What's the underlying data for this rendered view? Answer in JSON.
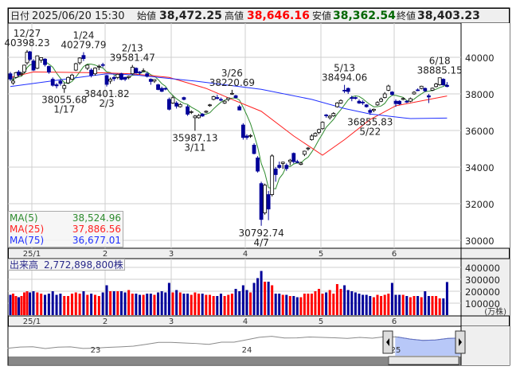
{
  "header": {
    "date_label": "日付",
    "datetime": "2025/06/20 15:30",
    "open_label": "始値",
    "open": "38,472.25",
    "high_label": "高値",
    "high": "38,646.16",
    "low_label": "安値",
    "low": "38,362.54",
    "close_label": "終値",
    "close": "38,403.23"
  },
  "legend": {
    "ma5_label": "MA(5)",
    "ma5_value": "38,524.96",
    "ma25_label": "MA(25)",
    "ma25_value": "37,886.56",
    "ma75_label": "MA(75)",
    "ma75_value": "36,677.01"
  },
  "volume_legend": {
    "label": "出来高",
    "value": "2,772,898,800株"
  },
  "colors": {
    "up": "#ffffff",
    "down": "#000099",
    "volume_up": "#ff0000",
    "volume_down": "#000099",
    "ma5": "#2e8b2e",
    "ma25": "#ff2020",
    "ma75": "#2030ff",
    "header_high": "#ff0000",
    "header_low": "#006600",
    "nav_selection": "#b8c8f8"
  },
  "chart_data": {
    "type": "candlestick",
    "y_ticks": [
      "30000",
      "32000",
      "34000",
      "36000",
      "38000",
      "40000"
    ],
    "ylim": [
      29565,
      41870
    ],
    "x_month_labels": [
      "25/1",
      "2",
      "3",
      "4",
      "5",
      "6"
    ],
    "volume_ticks": [
      "100000",
      "200000",
      "300000",
      "400000"
    ],
    "volume_unit": "(万株)",
    "grid": true,
    "candles": [
      [
        "12/19",
        39100,
        39200,
        38700,
        38810,
        170000
      ],
      [
        "12/20",
        38600,
        38900,
        38500,
        38700,
        180000
      ],
      [
        "12/23",
        38900,
        39200,
        38850,
        39160,
        160000
      ],
      [
        "12/24",
        39200,
        39300,
        38950,
        39040,
        150000
      ],
      [
        "12/25",
        39100,
        39200,
        38980,
        39130,
        160000
      ],
      [
        "12/26",
        39200,
        39600,
        39150,
        39570,
        190000
      ],
      [
        "12/27",
        39700,
        40398.23,
        39600,
        40280,
        200000
      ],
      [
        "12/30",
        40300,
        40350,
        39800,
        39890,
        190000
      ],
      [
        "1/6",
        39800,
        39900,
        39250,
        39300,
        200000
      ],
      [
        "1/7",
        39400,
        40100,
        39350,
        40080,
        190000
      ],
      [
        "1/8",
        39850,
        40000,
        39700,
        39980,
        180000
      ],
      [
        "1/9",
        39900,
        39950,
        39500,
        39600,
        170000
      ],
      [
        "1/10",
        39500,
        39550,
        39100,
        39190,
        180000
      ],
      [
        "1/14",
        38800,
        38900,
        38400,
        38470,
        200000
      ],
      [
        "1/15",
        38500,
        38600,
        38300,
        38440,
        170000
      ],
      [
        "1/16",
        38700,
        38800,
        38450,
        38570,
        180000
      ],
      [
        "1/17",
        38300,
        38600,
        38055.68,
        38450,
        160000
      ],
      [
        "1/20",
        38600,
        38950,
        38550,
        38900,
        160000
      ],
      [
        "1/21",
        38800,
        39100,
        38750,
        39030,
        180000
      ],
      [
        "1/22",
        39300,
        39700,
        39250,
        39650,
        190000
      ],
      [
        "1/23",
        39700,
        40000,
        39600,
        39960,
        180000
      ],
      [
        "1/24",
        40100,
        40279.79,
        39800,
        39930,
        200000
      ],
      [
        "1/27",
        39400,
        39600,
        39300,
        39570,
        170000
      ],
      [
        "1/28",
        39300,
        39400,
        38900,
        39020,
        180000
      ],
      [
        "1/29",
        39100,
        39450,
        39000,
        39410,
        170000
      ],
      [
        "1/30",
        39500,
        39600,
        39300,
        39510,
        160000
      ],
      [
        "1/31",
        39600,
        39700,
        39450,
        39570,
        190000
      ],
      [
        "2/3",
        39000,
        39050,
        38401.82,
        38520,
        250000
      ],
      [
        "2/4",
        38700,
        38900,
        38550,
        38800,
        200000
      ],
      [
        "2/5",
        38900,
        39000,
        38700,
        38830,
        200000
      ],
      [
        "2/6",
        38900,
        39100,
        38800,
        39070,
        200000
      ],
      [
        "2/7",
        39100,
        39150,
        38750,
        38790,
        200000
      ],
      [
        "2/10",
        38900,
        38950,
        38700,
        38800,
        190000
      ],
      [
        "2/12",
        38900,
        39000,
        38800,
        38960,
        210000
      ],
      [
        "2/13",
        39100,
        39581.47,
        39050,
        39460,
        180000
      ],
      [
        "2/14",
        39400,
        39450,
        39100,
        39150,
        180000
      ],
      [
        "2/17",
        39200,
        39250,
        39050,
        39170,
        170000
      ],
      [
        "2/18",
        39250,
        39400,
        39200,
        39270,
        170000
      ],
      [
        "2/19",
        39100,
        39200,
        38900,
        38960,
        180000
      ],
      [
        "2/20",
        38800,
        38850,
        38500,
        38680,
        180000
      ],
      [
        "2/21",
        38700,
        38800,
        38600,
        38780,
        170000
      ],
      [
        "2/25",
        38500,
        38550,
        38200,
        38240,
        190000
      ],
      [
        "2/26",
        38300,
        38400,
        38100,
        38140,
        200000
      ],
      [
        "2/27",
        38300,
        38350,
        38200,
        38260,
        190000
      ],
      [
        "2/28",
        37700,
        37800,
        37100,
        37160,
        270000
      ],
      [
        "3/3",
        37500,
        37900,
        37450,
        37790,
        190000
      ],
      [
        "3/4",
        37500,
        37600,
        37200,
        37330,
        210000
      ],
      [
        "3/5",
        37300,
        37500,
        37250,
        37420,
        190000
      ],
      [
        "3/6",
        37800,
        37850,
        37650,
        37700,
        180000
      ],
      [
        "3/7",
        37300,
        37400,
        36800,
        36890,
        180000
      ],
      [
        "3/10",
        37000,
        37100,
        36900,
        37030,
        170000
      ],
      [
        "3/11",
        36700,
        36850,
        35987.13,
        36790,
        190000
      ],
      [
        "3/12",
        36700,
        36900,
        36650,
        36820,
        180000
      ],
      [
        "3/13",
        36900,
        36950,
        36750,
        36790,
        180000
      ],
      [
        "3/14",
        37000,
        37100,
        36950,
        37050,
        170000
      ],
      [
        "3/17",
        37380,
        37450,
        37300,
        37400,
        170000
      ],
      [
        "3/18",
        37700,
        37900,
        37650,
        37850,
        160000
      ],
      [
        "3/19",
        37800,
        37950,
        37700,
        37750,
        160000
      ],
      [
        "3/21",
        37700,
        37800,
        37600,
        37680,
        180000
      ],
      [
        "3/24",
        37500,
        37650,
        37450,
        37600,
        160000
      ],
      [
        "3/25",
        37700,
        37800,
        37600,
        37780,
        170000
      ],
      [
        "3/26",
        38000,
        38220.69,
        37950,
        38030,
        180000
      ],
      [
        "3/27",
        37900,
        37950,
        37750,
        37800,
        220000
      ],
      [
        "3/28",
        37300,
        37400,
        37100,
        37120,
        200000
      ],
      [
        "3/31",
        36300,
        36400,
        35500,
        35620,
        250000
      ],
      [
        "4/1",
        35700,
        35800,
        35500,
        35620,
        210000
      ],
      [
        "4/2",
        35700,
        35800,
        35600,
        35730,
        190000
      ],
      [
        "4/3",
        35200,
        35300,
        34700,
        34740,
        270000
      ],
      [
        "4/4",
        34500,
        34600,
        33700,
        33780,
        310000
      ],
      [
        "4/7",
        33100,
        33200,
        30792.74,
        31140,
        370000
      ],
      [
        "4/8",
        31500,
        33100,
        31400,
        33010,
        280000
      ],
      [
        "4/9",
        32500,
        32700,
        31100,
        31710,
        280000
      ],
      [
        "4/10",
        32500,
        34700,
        32400,
        34610,
        250000
      ],
      [
        "4/11",
        33900,
        34000,
        33200,
        33590,
        180000
      ],
      [
        "4/14",
        34100,
        34300,
        33900,
        33980,
        180000
      ],
      [
        "4/15",
        34200,
        34300,
        33900,
        34270,
        170000
      ],
      [
        "4/16",
        34100,
        34200,
        33800,
        33920,
        170000
      ],
      [
        "4/17",
        34300,
        34450,
        34100,
        34380,
        160000
      ],
      [
        "4/18",
        34750,
        34800,
        34200,
        34300,
        160000
      ],
      [
        "4/21",
        34300,
        34400,
        34200,
        34280,
        150000
      ],
      [
        "4/22",
        34150,
        34300,
        34100,
        34220,
        150000
      ],
      [
        "4/23",
        34700,
        34900,
        34600,
        34870,
        180000
      ],
      [
        "4/24",
        35000,
        35100,
        34900,
        35040,
        180000
      ],
      [
        "4/25",
        35500,
        35800,
        35450,
        35700,
        180000
      ],
      [
        "4/28",
        35700,
        35900,
        35650,
        35840,
        200000
      ],
      [
        "4/30",
        35900,
        36100,
        35800,
        36050,
        220000
      ],
      [
        "5/1",
        36100,
        36500,
        36050,
        36450,
        180000
      ],
      [
        "5/2",
        36850,
        36900,
        36700,
        36830,
        190000
      ],
      [
        "5/7",
        36700,
        36850,
        36600,
        36780,
        210000
      ],
      [
        "5/8",
        36800,
        37000,
        36750,
        36930,
        180000
      ],
      [
        "5/9",
        37300,
        37550,
        37250,
        37500,
        260000
      ],
      [
        "5/12",
        37500,
        37700,
        37450,
        37640,
        220000
      ],
      [
        "5/13",
        38200,
        38494.06,
        38050,
        38180,
        250000
      ],
      [
        "5/14",
        38300,
        38350,
        38000,
        38130,
        210000
      ],
      [
        "5/15",
        37800,
        37900,
        37600,
        37750,
        200000
      ],
      [
        "5/16",
        37800,
        37850,
        37700,
        37750,
        190000
      ],
      [
        "5/19",
        37600,
        37700,
        37450,
        37500,
        180000
      ],
      [
        "5/20",
        37550,
        37650,
        37400,
        37530,
        170000
      ],
      [
        "5/21",
        37400,
        37450,
        37250,
        37300,
        170000
      ],
      [
        "5/22",
        37100,
        37200,
        36855.83,
        36990,
        160000
      ],
      [
        "5/23",
        37100,
        37200,
        37000,
        37160,
        150000
      ],
      [
        "5/26",
        37400,
        37600,
        37350,
        37530,
        170000
      ],
      [
        "5/27",
        37600,
        37800,
        37550,
        37720,
        160000
      ],
      [
        "5/28",
        37800,
        38100,
        37750,
        38000,
        170000
      ],
      [
        "5/29",
        38200,
        38500,
        38150,
        38430,
        180000
      ],
      [
        "5/30",
        38100,
        38150,
        37900,
        37970,
        270000
      ],
      [
        "6/2",
        37600,
        37700,
        37300,
        37470,
        170000
      ],
      [
        "6/3",
        37600,
        37650,
        37400,
        37450,
        170000
      ],
      [
        "6/4",
        37700,
        37800,
        37650,
        37750,
        170000
      ],
      [
        "6/5",
        37600,
        37650,
        37500,
        37550,
        160000
      ],
      [
        "6/6",
        37600,
        37800,
        37550,
        37740,
        150000
      ],
      [
        "6/9",
        38000,
        38150,
        37950,
        38090,
        160000
      ],
      [
        "6/10",
        38220,
        38300,
        38150,
        38210,
        160000
      ],
      [
        "6/11",
        38300,
        38450,
        38250,
        38420,
        150000
      ],
      [
        "6/12",
        38300,
        38350,
        38100,
        38170,
        200000
      ],
      [
        "6/13",
        37900,
        38000,
        37500,
        37830,
        160000
      ],
      [
        "6/16",
        38200,
        38350,
        38150,
        38310,
        160000
      ],
      [
        "6/17",
        38400,
        38600,
        38350,
        38540,
        160000
      ],
      [
        "6/18",
        38500,
        38885.15,
        38450,
        38880,
        140000
      ],
      [
        "6/19",
        38800,
        38850,
        38450,
        38490,
        140000
      ],
      [
        "6/20",
        38472.25,
        38646.16,
        38362.54,
        38403.23,
        277290
      ]
    ],
    "ma25": [
      [
        "12/19",
        38900
      ],
      [
        "1/6",
        39200
      ],
      [
        "1/31",
        39150
      ],
      [
        "2/13",
        39100
      ],
      [
        "2/28",
        38900
      ],
      [
        "3/14",
        38300
      ],
      [
        "3/26",
        37700
      ],
      [
        "4/7",
        37050
      ],
      [
        "4/18",
        35700
      ],
      [
        "5/1",
        34650
      ],
      [
        "5/13",
        35500
      ],
      [
        "5/22",
        36600
      ],
      [
        "6/2",
        37350
      ],
      [
        "6/20",
        37886.56
      ]
    ],
    "ma75": [
      [
        "12/19",
        38400
      ],
      [
        "1/17",
        38800
      ],
      [
        "2/3",
        39100
      ],
      [
        "2/13",
        39050
      ],
      [
        "3/11",
        38700
      ],
      [
        "3/26",
        38450
      ],
      [
        "4/7",
        38250
      ],
      [
        "4/25",
        37700
      ],
      [
        "5/13",
        37200
      ],
      [
        "5/22",
        36900
      ],
      [
        "6/6",
        36650
      ],
      [
        "6/20",
        36677.01
      ]
    ],
    "annotations": [
      {
        "date": "12/27",
        "value": "40398.23",
        "type": "high"
      },
      {
        "date": "1/24",
        "value": "40279.79",
        "type": "high"
      },
      {
        "date": "2/13",
        "value": "39581.47",
        "type": "high"
      },
      {
        "date": "1/17",
        "value": "38055.68",
        "type": "low"
      },
      {
        "date": "2/3",
        "value": "38401.82",
        "type": "low"
      },
      {
        "date": "3/11",
        "value": "35987.13",
        "type": "low"
      },
      {
        "date": "3/26",
        "value": "38220.69",
        "type": "high"
      },
      {
        "date": "4/7",
        "value": "30792.74",
        "type": "low"
      },
      {
        "date": "5/13",
        "value": "38494.06",
        "type": "high"
      },
      {
        "date": "5/22",
        "value": "36855.83",
        "type": "low"
      },
      {
        "date": "6/18",
        "value": "38885.15",
        "type": "high"
      }
    ]
  },
  "navigator": {
    "year_labels": [
      "23",
      "24",
      "25"
    ],
    "monthly": [
      26400,
      27800,
      28100,
      26000,
      27600,
      28000,
      26100,
      26500,
      27400,
      28000,
      28800,
      30900,
      33200,
      33200,
      32600,
      31900,
      30900,
      33500,
      33460,
      36300,
      39200,
      40400,
      38400,
      38500,
      39600,
      39100,
      38600,
      37900,
      39100,
      38200,
      39900,
      39570,
      37150,
      35600,
      36000,
      37960,
      38400
    ]
  }
}
